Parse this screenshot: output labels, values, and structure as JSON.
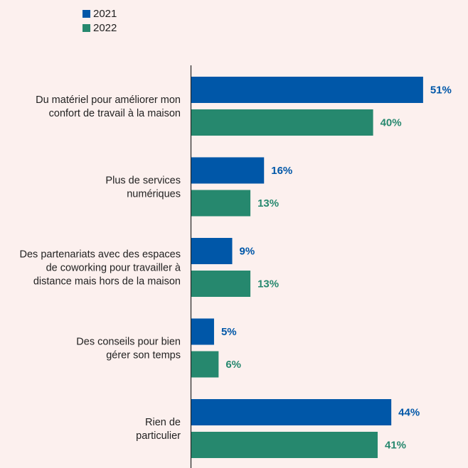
{
  "chart_data": {
    "type": "bar",
    "orientation": "horizontal",
    "categories": [
      [
        "Du matériel pour améliorer mon",
        "confort de travail à la maison"
      ],
      [
        "Plus de services",
        "numériques"
      ],
      [
        "Des partenariats avec des espaces",
        "de coworking pour travailler à",
        "distance mais hors de la maison"
      ],
      [
        "Des conseils pour bien",
        "gérer son temps"
      ],
      [
        "Rien de",
        "particulier"
      ]
    ],
    "series": [
      {
        "name": "2021",
        "color": "#0057a8",
        "values": [
          51,
          16,
          9,
          5,
          44
        ],
        "labels": [
          "51%",
          "16%",
          "9%",
          "5%",
          "44%"
        ]
      },
      {
        "name": "2022",
        "color": "#26886e",
        "values": [
          40,
          13,
          13,
          6,
          41
        ],
        "labels": [
          "40%",
          "13%",
          "13%",
          "6%",
          "41%"
        ]
      }
    ],
    "unit": "%",
    "legend_position": "top-left",
    "grid": false
  }
}
